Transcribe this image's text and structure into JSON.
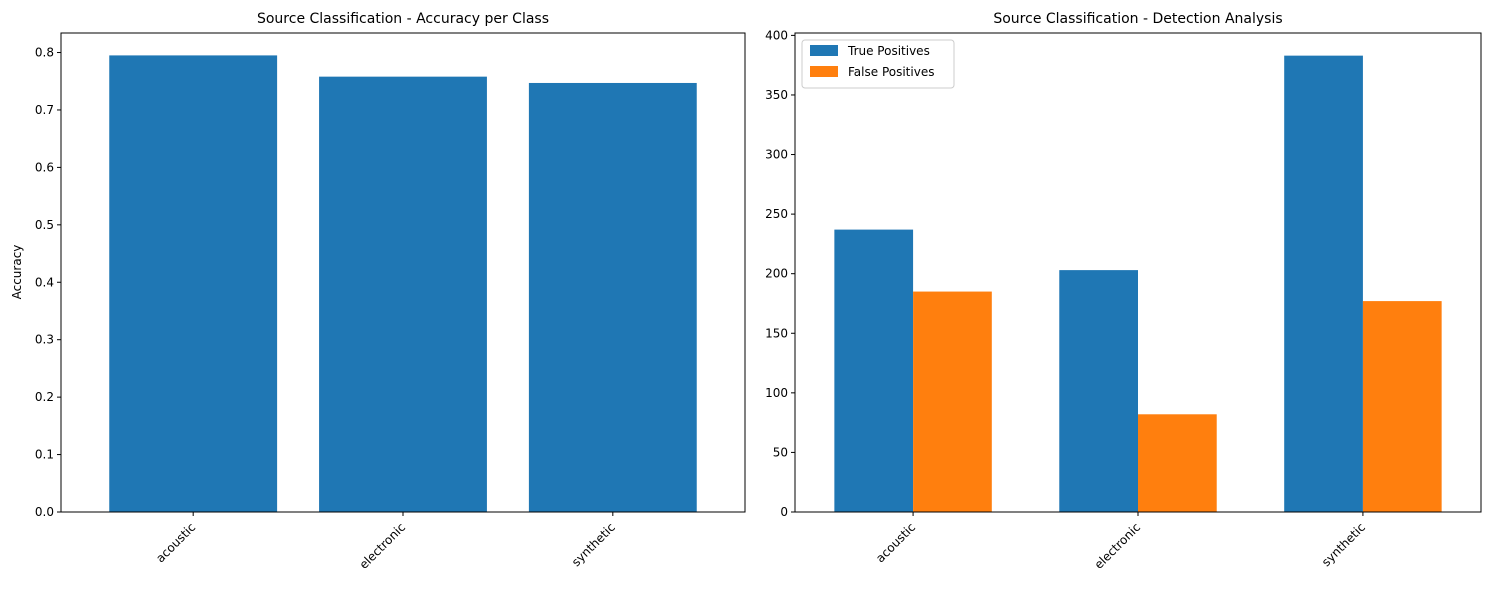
{
  "chart_data": [
    {
      "type": "bar",
      "title": "Source Classification - Accuracy per Class",
      "xlabel": "",
      "ylabel": "Accuracy",
      "categories": [
        "acoustic",
        "electronic",
        "synthetic"
      ],
      "values": [
        0.795,
        0.758,
        0.747
      ],
      "ylim": [
        0,
        0.834
      ],
      "yticks": [
        "0.0",
        "0.1",
        "0.2",
        "0.3",
        "0.4",
        "0.5",
        "0.6",
        "0.7",
        "0.8"
      ],
      "grid": false,
      "color": "#1f77b4"
    },
    {
      "type": "bar",
      "title": "Source Classification - Detection Analysis",
      "xlabel": "",
      "ylabel": "",
      "categories": [
        "acoustic",
        "electronic",
        "synthetic"
      ],
      "series": [
        {
          "name": "True Positives",
          "values": [
            237,
            203,
            383
          ],
          "color": "#1f77b4"
        },
        {
          "name": "False Positives",
          "values": [
            185,
            82,
            177
          ],
          "color": "#ff7f0e"
        }
      ],
      "ylim": [
        0,
        402
      ],
      "yticks": [
        "0",
        "50",
        "100",
        "150",
        "200",
        "250",
        "300",
        "350",
        "400"
      ],
      "grid": false,
      "legend": "top-left"
    }
  ]
}
